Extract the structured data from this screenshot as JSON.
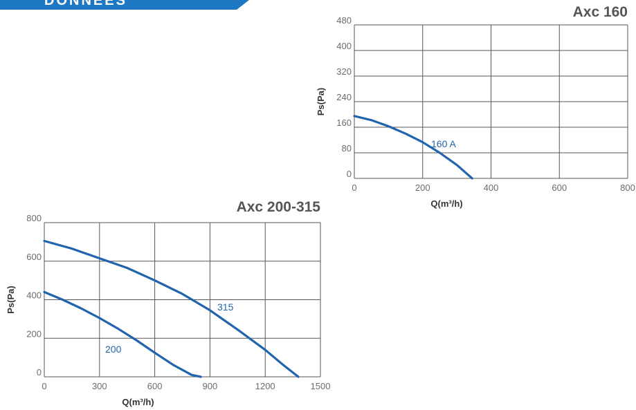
{
  "header": {
    "text": "DONNÉES"
  },
  "colors": {
    "banner": "#1d77c2",
    "curve": "#1f64ad",
    "grid": "#555555"
  },
  "chart_data": [
    {
      "type": "line",
      "title": "Axc 160",
      "xlabel": "Q(m³/h)",
      "ylabel": "Ps(Pa)",
      "xlim": [
        0,
        800
      ],
      "ylim": [
        0,
        480
      ],
      "xticks": [
        0,
        200,
        400,
        600,
        800
      ],
      "yticks": [
        0,
        80,
        160,
        240,
        320,
        400,
        480
      ],
      "grid": true,
      "series": [
        {
          "name": "160 A",
          "x": [
            0,
            50,
            100,
            150,
            200,
            250,
            300,
            345
          ],
          "y": [
            195,
            182,
            163,
            140,
            113,
            80,
            42,
            0
          ]
        }
      ]
    },
    {
      "type": "line",
      "title": "Axc 200-315",
      "xlabel": "Q(m³/h)",
      "ylabel": "Ps(Pa)",
      "xlim": [
        0,
        1500
      ],
      "ylim": [
        0,
        800
      ],
      "xticks": [
        0,
        300,
        600,
        900,
        1200,
        1500
      ],
      "yticks": [
        0,
        200,
        400,
        600,
        800
      ],
      "grid": true,
      "series": [
        {
          "name": "315",
          "x": [
            0,
            150,
            300,
            450,
            600,
            750,
            900,
            1050,
            1200,
            1300,
            1380
          ],
          "y": [
            705,
            665,
            615,
            565,
            500,
            430,
            345,
            245,
            140,
            60,
            0
          ]
        },
        {
          "name": "200",
          "x": [
            0,
            100,
            200,
            300,
            400,
            500,
            600,
            700,
            800,
            850
          ],
          "y": [
            440,
            400,
            355,
            305,
            250,
            190,
            125,
            62,
            10,
            0
          ]
        }
      ]
    }
  ]
}
